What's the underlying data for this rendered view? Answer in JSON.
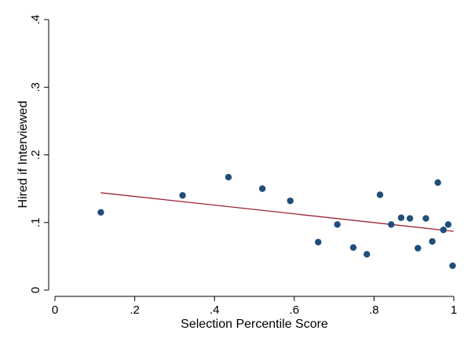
{
  "chart_data": {
    "type": "scatter",
    "title": "",
    "xlabel": "Selection Percentile Score",
    "ylabel": "Hired if Interviewed",
    "xlim": [
      0,
      1
    ],
    "ylim": [
      0,
      0.4
    ],
    "x_ticks": [
      0,
      0.2,
      0.4,
      0.6,
      0.8,
      1
    ],
    "x_tick_labels": [
      "0",
      ".2",
      ".4",
      ".6",
      ".8",
      "1"
    ],
    "y_ticks": [
      0,
      0.1,
      0.2,
      0.3,
      0.4
    ],
    "y_tick_labels": [
      "0",
      ".1",
      ".2",
      ".3",
      ".4"
    ],
    "grid": false,
    "legend": false,
    "series": [
      {
        "type": "scatter",
        "color": "#1f4e79",
        "points": [
          {
            "x": 0.115,
            "y": 0.115
          },
          {
            "x": 0.32,
            "y": 0.14
          },
          {
            "x": 0.435,
            "y": 0.167
          },
          {
            "x": 0.52,
            "y": 0.15
          },
          {
            "x": 0.59,
            "y": 0.132
          },
          {
            "x": 0.66,
            "y": 0.071
          },
          {
            "x": 0.708,
            "y": 0.097
          },
          {
            "x": 0.748,
            "y": 0.063
          },
          {
            "x": 0.782,
            "y": 0.053
          },
          {
            "x": 0.815,
            "y": 0.141
          },
          {
            "x": 0.843,
            "y": 0.097
          },
          {
            "x": 0.868,
            "y": 0.107
          },
          {
            "x": 0.89,
            "y": 0.106
          },
          {
            "x": 0.91,
            "y": 0.062
          },
          {
            "x": 0.93,
            "y": 0.106
          },
          {
            "x": 0.946,
            "y": 0.072
          },
          {
            "x": 0.96,
            "y": 0.159
          },
          {
            "x": 0.974,
            "y": 0.089
          },
          {
            "x": 0.986,
            "y": 0.097
          },
          {
            "x": 0.997,
            "y": 0.036
          }
        ]
      },
      {
        "type": "line",
        "color": "#9b2335",
        "points": [
          {
            "x": 0.115,
            "y": 0.144
          },
          {
            "x": 1.0,
            "y": 0.087
          }
        ]
      }
    ]
  }
}
